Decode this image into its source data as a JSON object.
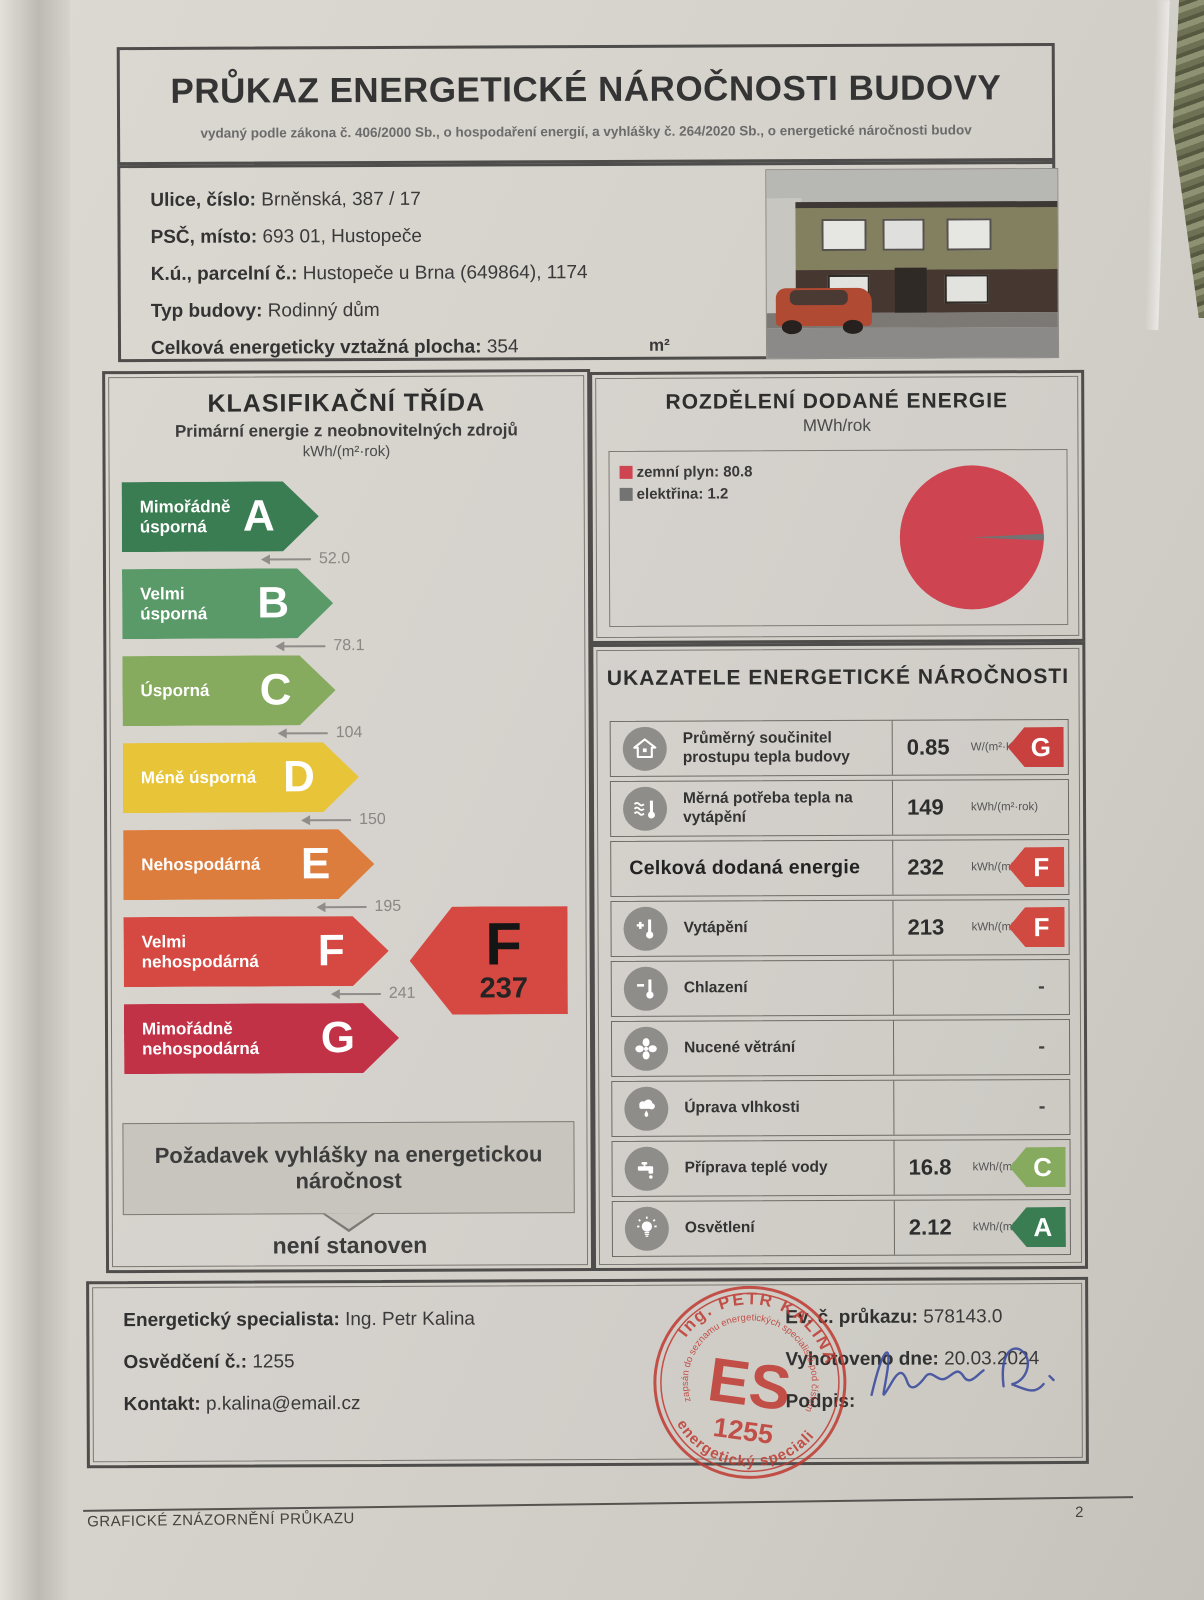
{
  "header": {
    "title": "PRŮKAZ ENERGETICKÉ NÁROČNOSTI BUDOVY",
    "subtitle": "vydaný podle zákona č. 406/2000 Sb., o hospodaření energií, a vyhlášky č. 264/2020 Sb., o energetické náročnosti budov"
  },
  "building": {
    "street_label": "Ulice, číslo:",
    "street": "Brněnská, 387 / 17",
    "city_label": "PSČ, místo:",
    "city": "693 01, Hustopeče",
    "parcel_label": "K.ú., parcelní č.:",
    "parcel": "Hustopeče u Brna (649864), 1174",
    "type_label": "Typ budovy:",
    "type": "Rodinný dům",
    "area_label": "Celková energeticky vztažná plocha:",
    "area": "354",
    "area_unit": "m²"
  },
  "classification": {
    "title": "KLASIFIKAČNÍ TŘÍDA",
    "subtitle": "Primární energie z neobnovitelných zdrojů",
    "unit": "kWh/(m²·rok)",
    "classes": [
      {
        "letter": "A",
        "label": "Mimořádně\núsporná",
        "threshold": "52.0",
        "color": "#3a7d52"
      },
      {
        "letter": "B",
        "label": "Velmi\núsporná",
        "threshold": "78.1",
        "color": "#5a9968"
      },
      {
        "letter": "C",
        "label": "Úsporná",
        "threshold": "104",
        "color": "#86aa5e"
      },
      {
        "letter": "D",
        "label": "Méně úsporná",
        "threshold": "150",
        "color": "#e8c438"
      },
      {
        "letter": "E",
        "label": "Nehospodárná",
        "threshold": "195",
        "color": "#dd7d3d"
      },
      {
        "letter": "F",
        "label": "Velmi\nnehospodárná",
        "threshold": "241",
        "color": "#d64942"
      },
      {
        "letter": "G",
        "label": "Mimořádně\nnehospodárná",
        "threshold": "",
        "color": "#c23247"
      }
    ],
    "current": {
      "letter": "F",
      "value": "237",
      "color": "#d64942"
    },
    "requirement_title": "Požadavek vyhlášky na energetickou náročnost",
    "requirement_value": "není stanoven"
  },
  "energy_split": {
    "title": "ROZDĚLENÍ DODANÉ ENERGIE",
    "unit": "MWh/rok",
    "legend": [
      {
        "label": "zemní plyn: 80.8",
        "color": "#ce4450"
      },
      {
        "label": "elektřina: 1.2",
        "color": "#737373"
      }
    ]
  },
  "chart_data": {
    "type": "pie",
    "title": "ROZDĚLENÍ DODANÉ ENERGIE",
    "unit": "MWh/rok",
    "labels": [
      "zemní plyn",
      "elektřina"
    ],
    "values": [
      80.8,
      1.2
    ],
    "colors": [
      "#ce4450",
      "#737373"
    ],
    "legend_position": "top-left"
  },
  "indicators": {
    "title": "UKAZATELE ENERGETICKÉ NÁROČNOSTI",
    "rows": [
      {
        "icon": "house-icon",
        "label": "Průměrný součinitel prostupu tepla budovy",
        "value": "0.85",
        "unit": "W/(m²·K)",
        "badge": "G",
        "badge_color": "#c8413e",
        "dash": ""
      },
      {
        "icon": "heating-demand-icon",
        "label": "Měrná potřeba tepla na vytápění",
        "value": "149",
        "unit": "kWh/(m²·rok)",
        "badge": "",
        "badge_color": "",
        "dash": ""
      },
      {
        "icon": "",
        "label": "Celková dodaná energie",
        "value": "232",
        "unit": "kWh/(m²·rok)",
        "badge": "F",
        "badge_color": "#d14a42",
        "dash": ""
      },
      {
        "icon": "heating-icon",
        "label": "Vytápění",
        "value": "213",
        "unit": "kWh/(m²·rok)",
        "badge": "F",
        "badge_color": "#d14a42",
        "dash": ""
      },
      {
        "icon": "cooling-icon",
        "label": "Chlazení",
        "value": "",
        "unit": "",
        "badge": "",
        "badge_color": "",
        "dash": "-"
      },
      {
        "icon": "ventilation-icon",
        "label": "Nucené větrání",
        "value": "",
        "unit": "",
        "badge": "",
        "badge_color": "",
        "dash": "-"
      },
      {
        "icon": "humidity-icon",
        "label": "Úprava vlhkosti",
        "value": "",
        "unit": "",
        "badge": "",
        "badge_color": "",
        "dash": "-"
      },
      {
        "icon": "hot-water-icon",
        "label": "Příprava teplé vody",
        "value": "16.8",
        "unit": "kWh/(m²·rok)",
        "badge": "C",
        "badge_color": "#86aa5e",
        "dash": ""
      },
      {
        "icon": "lighting-icon",
        "label": "Osvětlení",
        "value": "2.12",
        "unit": "kWh/(m²·rok)",
        "badge": "A",
        "badge_color": "#3a7d52",
        "dash": ""
      }
    ]
  },
  "specialist": {
    "name_label": "Energetický specialista:",
    "name": "Ing. Petr Kalina",
    "cert_label": "Osvědčení č.:",
    "cert": "1255",
    "contact_label": "Kontakt:",
    "contact": "p.kalina@email.cz",
    "ev_label": "Ev. č. průkazu:",
    "ev": "578143.0",
    "date_label": "Vyhotoveno dne:",
    "date": "20.03.2024",
    "signature_label": "Podpis:",
    "stamp": {
      "top_arc": "Ing. PETR KALINA",
      "inner_arc": "zapsán do seznamu energetických specialistů pod číslem",
      "monogram": "ES",
      "number": "1255",
      "bottom_arc": "energetický specialista"
    }
  },
  "footer": {
    "left": "GRAFICKÉ ZNÁZORNĚNÍ PRŮKAZU",
    "page": "2"
  }
}
